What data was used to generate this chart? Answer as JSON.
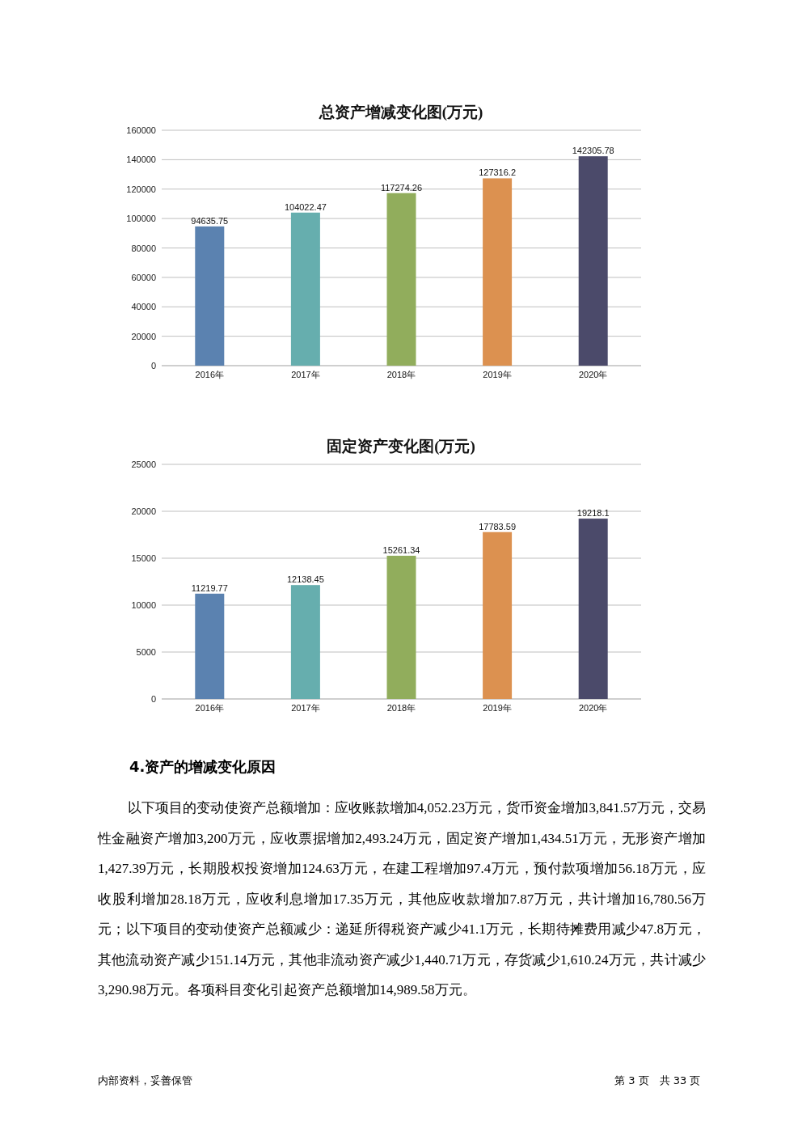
{
  "chart_data": [
    {
      "type": "bar",
      "title": "总资产增减变化图(万元)",
      "categories": [
        "2016年",
        "2017年",
        "2018年",
        "2019年",
        "2020年"
      ],
      "values": [
        94635.75,
        104022.47,
        117274.26,
        127316.2,
        142305.78
      ],
      "value_labels": [
        "94635.75",
        "104022.47",
        "117274.26",
        "127316.2",
        "142305.78"
      ],
      "colors": [
        "#5b82b0",
        "#66aeae",
        "#91ad5c",
        "#dc9150",
        "#4b4a6a"
      ],
      "ylim": [
        0,
        160000
      ],
      "yticks": [
        0,
        20000,
        40000,
        60000,
        80000,
        100000,
        120000,
        140000,
        160000
      ],
      "grid": "y"
    },
    {
      "type": "bar",
      "title": "固定资产变化图(万元)",
      "categories": [
        "2016年",
        "2017年",
        "2018年",
        "2019年",
        "2020年"
      ],
      "values": [
        11219.77,
        12138.45,
        15261.34,
        17783.59,
        19218.1
      ],
      "value_labels": [
        "11219.77",
        "12138.45",
        "15261.34",
        "17783.59",
        "19218.1"
      ],
      "colors": [
        "#5b82b0",
        "#66aeae",
        "#91ad5c",
        "#dc9150",
        "#4b4a6a"
      ],
      "ylim": [
        0,
        25000
      ],
      "yticks": [
        0,
        5000,
        10000,
        15000,
        20000,
        25000
      ],
      "grid": "y",
      "annotations": [
        "4.资产的增减变化原因",
        "以下项目的变动使资产总额增加：应收账款增加4,052.23万元，货币资金增加3,841.57万元，交易性金融资产增加3,200万元，应收票据增加2,493.24万元，固定资产增加1,434.51万元，无形资产增加1,427.39万元，长期股权投资增加124.63万元，在建工程增加97.4万元，预付款项增加56.18万元，应收股利增加28.18万元，应收利息增加17.35万元，其他应收款增加7.87万元，共计增加16,780.56万元；以下项目的变动使资产总额减少：递延所得税资产减少41.1万元，长期待摊费用减少47.8万元，其他流动资产减少151.14万元，其他非流动资产减少1,440.71万元，存货减少1,610.24万元，共计减少3,290.98万元。各项科目变化引起资产总额增加14,989.58万元。",
        "内部资料，妥善保管",
        "第 3 页　共 33 页"
      ]
    }
  ]
}
